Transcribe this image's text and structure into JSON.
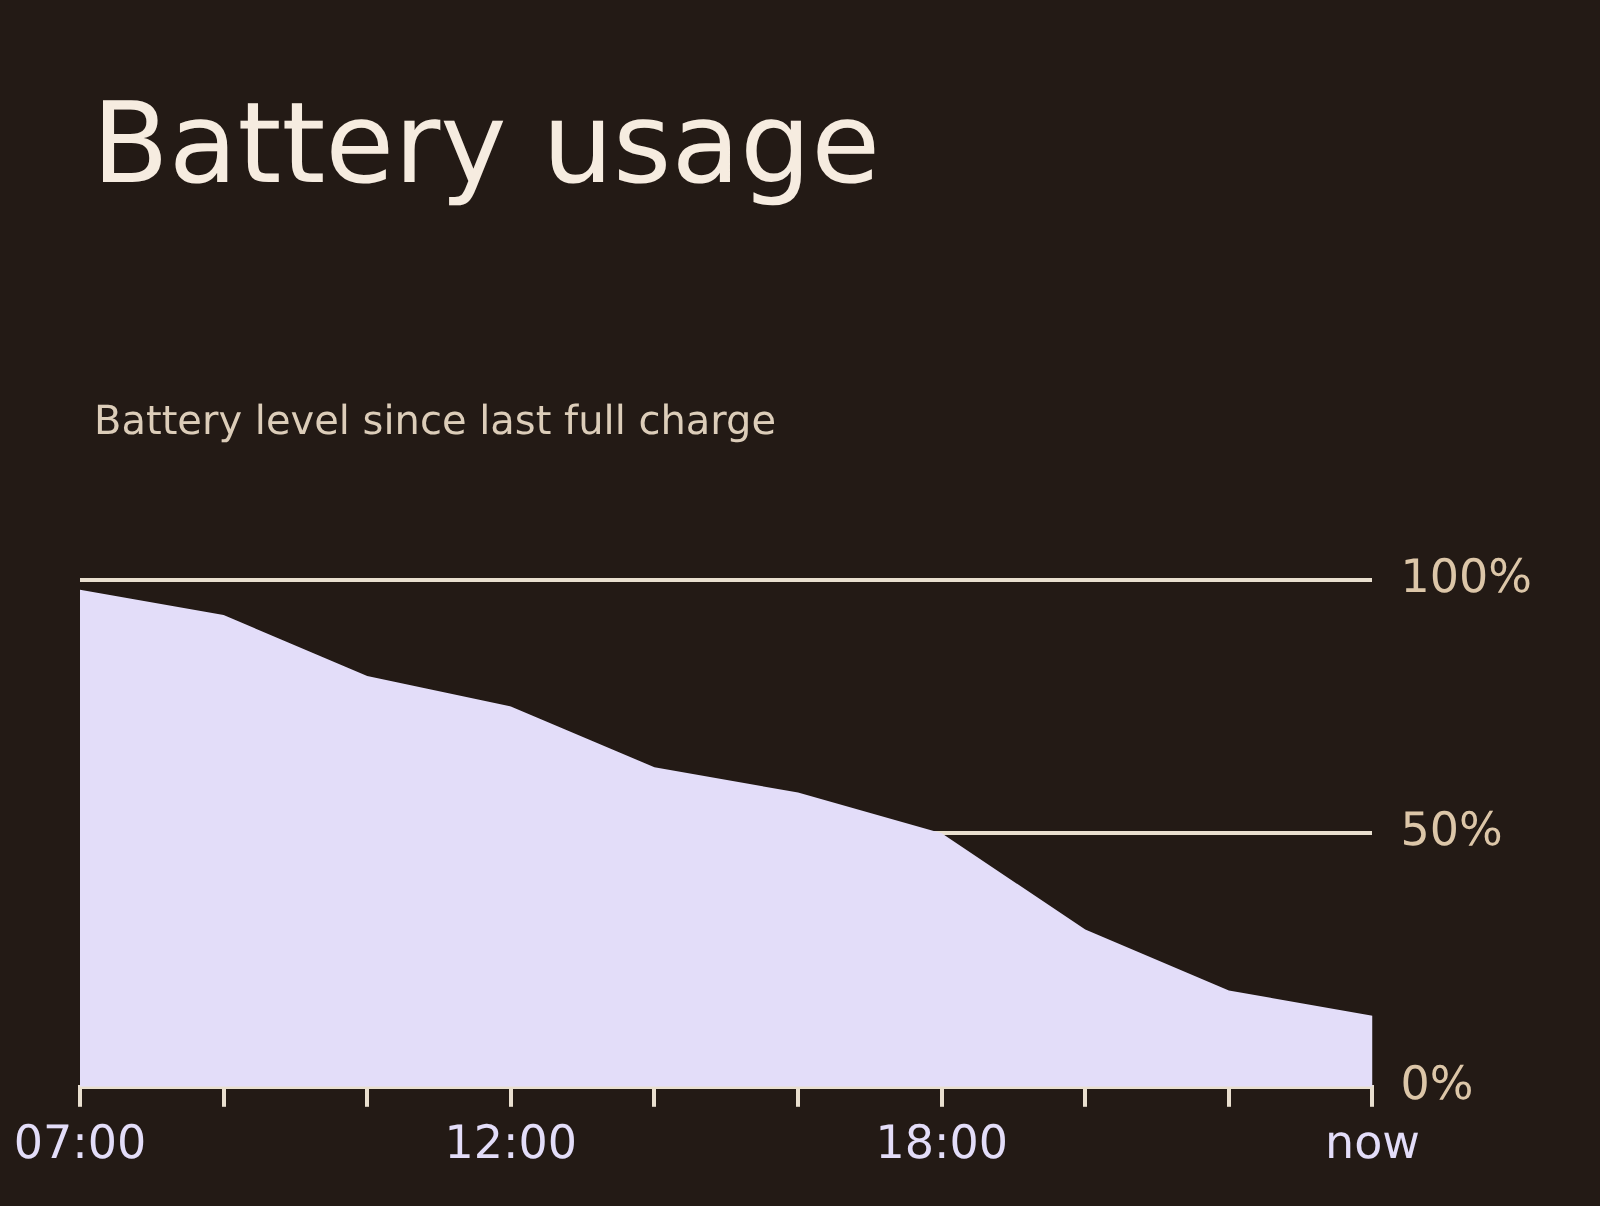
{
  "chart_data": {
    "type": "area",
    "title": "Battery usage",
    "subtitle": "Battery level since last full charge",
    "categories": [
      "07:00",
      null,
      null,
      "12:00",
      null,
      null,
      "18:00",
      null,
      null,
      "now"
    ],
    "values": [
      98,
      93,
      81,
      75,
      63,
      58,
      50,
      31,
      19,
      14
    ],
    "color": "#e3ddf9",
    "ylim": [
      0,
      100
    ],
    "yticks": [
      {
        "value": 0,
        "label": "0%"
      },
      {
        "value": 50,
        "label": "50%"
      },
      {
        "value": 100,
        "label": "100%"
      }
    ],
    "grid": "y"
  }
}
